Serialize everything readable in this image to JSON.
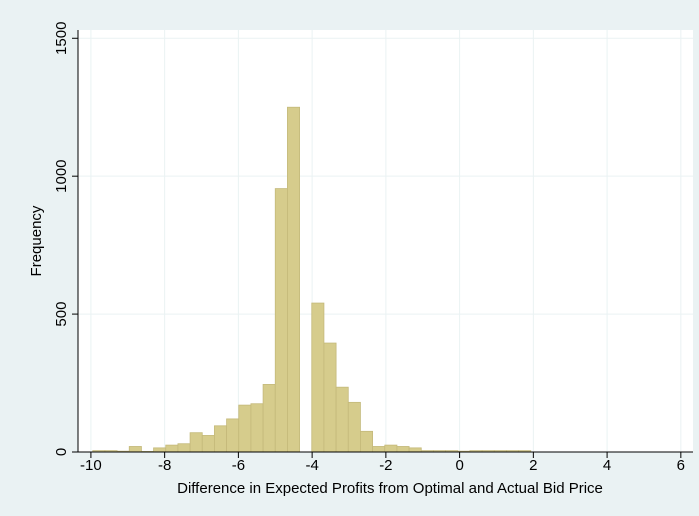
{
  "chart_data": {
    "type": "histogram",
    "x_label": "Difference in Expected Profits from Optimal and Actual Bid Price",
    "y_label": "Frequency",
    "bins": [
      -9.95,
      -9.62,
      -9.29,
      -8.96,
      -8.63,
      -8.3,
      -7.97,
      -7.64,
      -7.31,
      -6.98,
      -6.65,
      -6.32,
      -5.99,
      -5.66,
      -5.33,
      -5.0,
      -4.67,
      -4.34,
      -4.01,
      -3.68,
      -3.35,
      -3.02,
      -2.69,
      -2.36,
      -2.03,
      -1.7,
      -1.37,
      -1.04,
      -0.71,
      -0.38,
      -0.05,
      0.28,
      0.61,
      0.94,
      1.27,
      1.6,
      1.93
    ],
    "values": [
      5,
      5,
      3,
      20,
      2,
      15,
      25,
      30,
      70,
      60,
      95,
      120,
      170,
      175,
      245,
      955,
      1250,
      0,
      540,
      395,
      235,
      180,
      75,
      20,
      25,
      20,
      15,
      5,
      5,
      5,
      3,
      5,
      5,
      5,
      5,
      5
    ],
    "color": "#d6cc8c",
    "xlim": [
      -10.35,
      6.33
    ],
    "xticks": [
      -10,
      -8,
      -6,
      -4,
      -2,
      0,
      2,
      4,
      6
    ],
    "ylim": [
      0,
      1530
    ],
    "yticks": [
      0,
      500,
      1000,
      1500
    ],
    "grid": true
  }
}
